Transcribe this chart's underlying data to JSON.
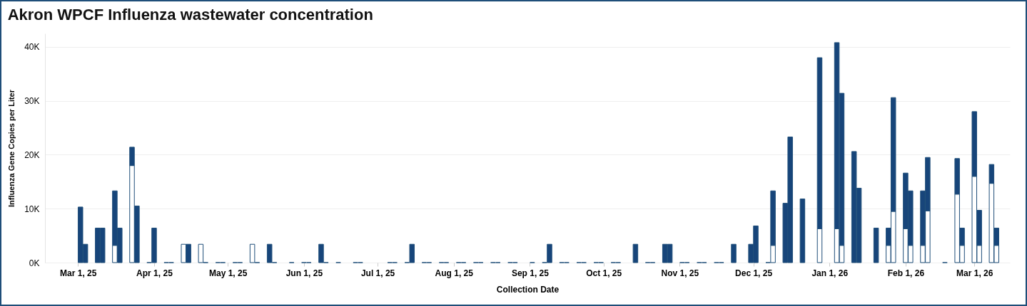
{
  "chart_data": {
    "type": "bar",
    "title": "Akron WPCF Influenza wastewater concentration",
    "xlabel": "Collection Date",
    "ylabel": "Influenza Gene Copies per Liter",
    "stacked": true,
    "grid": "y",
    "legend": false,
    "x": [
      "2025-03-02",
      "2025-03-04",
      "2025-03-09",
      "2025-03-11",
      "2025-03-16",
      "2025-03-18",
      "2025-03-23",
      "2025-03-25",
      "2025-03-30",
      "2025-04-01",
      "2025-04-06",
      "2025-04-08",
      "2025-04-13",
      "2025-04-15",
      "2025-04-20",
      "2025-04-22",
      "2025-04-27",
      "2025-04-29",
      "2025-05-04",
      "2025-05-06",
      "2025-05-11",
      "2025-05-13",
      "2025-05-18",
      "2025-05-20",
      "2025-05-27",
      "2025-06-01",
      "2025-06-03",
      "2025-06-08",
      "2025-06-10",
      "2025-06-15",
      "2025-06-22",
      "2025-06-24",
      "2025-07-06",
      "2025-07-08",
      "2025-07-13",
      "2025-07-15",
      "2025-07-20",
      "2025-07-22",
      "2025-07-27",
      "2025-07-29",
      "2025-08-03",
      "2025-08-05",
      "2025-08-10",
      "2025-08-12",
      "2025-08-17",
      "2025-08-19",
      "2025-08-24",
      "2025-08-26",
      "2025-09-02",
      "2025-09-07",
      "2025-09-09",
      "2025-09-14",
      "2025-09-16",
      "2025-09-21",
      "2025-09-23",
      "2025-09-28",
      "2025-09-30",
      "2025-10-05",
      "2025-10-07",
      "2025-10-14",
      "2025-10-19",
      "2025-10-21",
      "2025-10-26",
      "2025-10-28",
      "2025-11-02",
      "2025-11-04",
      "2025-11-09",
      "2025-11-11",
      "2025-11-16",
      "2025-11-18",
      "2025-11-23",
      "2025-11-30",
      "2025-12-02",
      "2025-12-07",
      "2025-12-09",
      "2025-12-14",
      "2025-12-16",
      "2025-12-21",
      "2025-12-28",
      "2026-01-04",
      "2026-01-06",
      "2026-01-11",
      "2026-01-13",
      "2026-01-20",
      "2026-01-25",
      "2026-01-27",
      "2026-02-01",
      "2026-02-03",
      "2026-02-08",
      "2026-02-10",
      "2026-02-17",
      "2026-02-22",
      "2026-02-24",
      "2026-03-01",
      "2026-03-03",
      "2026-03-08",
      "2026-03-10"
    ],
    "series": [
      {
        "color": "#ffffff",
        "values": [
          null,
          null,
          null,
          null,
          3200,
          null,
          18000,
          null,
          null,
          null,
          null,
          null,
          3400,
          null,
          3400,
          null,
          null,
          null,
          null,
          null,
          3400,
          null,
          null,
          null,
          null,
          null,
          null,
          null,
          null,
          null,
          null,
          null,
          null,
          null,
          null,
          null,
          null,
          null,
          null,
          null,
          null,
          null,
          null,
          null,
          null,
          null,
          null,
          null,
          null,
          null,
          null,
          null,
          null,
          null,
          null,
          null,
          null,
          null,
          null,
          null,
          null,
          null,
          null,
          null,
          null,
          null,
          null,
          null,
          null,
          null,
          null,
          null,
          null,
          null,
          3200,
          null,
          null,
          null,
          6300,
          6300,
          3200,
          null,
          null,
          null,
          3200,
          9500,
          6300,
          3200,
          3200,
          9600,
          null,
          12700,
          3200,
          16000,
          3200,
          14700,
          3200
        ]
      },
      {
        "color": "#17457a",
        "values": [
          10300,
          3400,
          6400,
          6400,
          10100,
          6400,
          3400,
          10500,
          0,
          6400,
          0,
          0,
          null,
          3400,
          null,
          0,
          0,
          0,
          0,
          0,
          null,
          0,
          3400,
          0,
          0,
          0,
          0,
          3400,
          0,
          0,
          0,
          0,
          0,
          0,
          0,
          3400,
          0,
          0,
          0,
          0,
          0,
          0,
          0,
          0,
          0,
          0,
          0,
          0,
          0,
          0,
          3400,
          0,
          0,
          0,
          0,
          0,
          0,
          0,
          0,
          3400,
          0,
          0,
          3400,
          3400,
          0,
          0,
          0,
          0,
          0,
          0,
          3400,
          3400,
          6800,
          0,
          10100,
          11000,
          23300,
          11800,
          31700,
          34500,
          28200,
          20600,
          13800,
          6400,
          3200,
          21100,
          10300,
          10100,
          10100,
          9900,
          0,
          6600,
          3200,
          12000,
          6500,
          3500,
          3200
        ]
      }
    ],
    "xlim": [
      "2025-02-17",
      "2026-03-14"
    ],
    "xticks": [
      {
        "value": "2025-03-01",
        "label": "Mar 1, 25"
      },
      {
        "value": "2025-04-01",
        "label": "Apr 1, 25"
      },
      {
        "value": "2025-05-01",
        "label": "May 1, 25"
      },
      {
        "value": "2025-06-01",
        "label": "Jun 1, 25"
      },
      {
        "value": "2025-07-01",
        "label": "Jul 1, 25"
      },
      {
        "value": "2025-08-01",
        "label": "Aug 1, 25"
      },
      {
        "value": "2025-09-01",
        "label": "Sep 1, 25"
      },
      {
        "value": "2025-10-01",
        "label": "Oct 1, 25"
      },
      {
        "value": "2025-11-01",
        "label": "Nov 1, 25"
      },
      {
        "value": "2025-12-01",
        "label": "Dec 1, 25"
      },
      {
        "value": "2026-01-01",
        "label": "Jan 1, 26"
      },
      {
        "value": "2026-02-01",
        "label": "Feb 1, 26"
      },
      {
        "value": "2026-03-01",
        "label": "Mar 1, 26"
      }
    ],
    "ylim": [
      0,
      42500
    ],
    "yticks": [
      {
        "value": 0,
        "label": "0K"
      },
      {
        "value": 10000,
        "label": "10K"
      },
      {
        "value": 20000,
        "label": "20K"
      },
      {
        "value": 30000,
        "label": "30K"
      },
      {
        "value": 40000,
        "label": "40K"
      }
    ]
  }
}
